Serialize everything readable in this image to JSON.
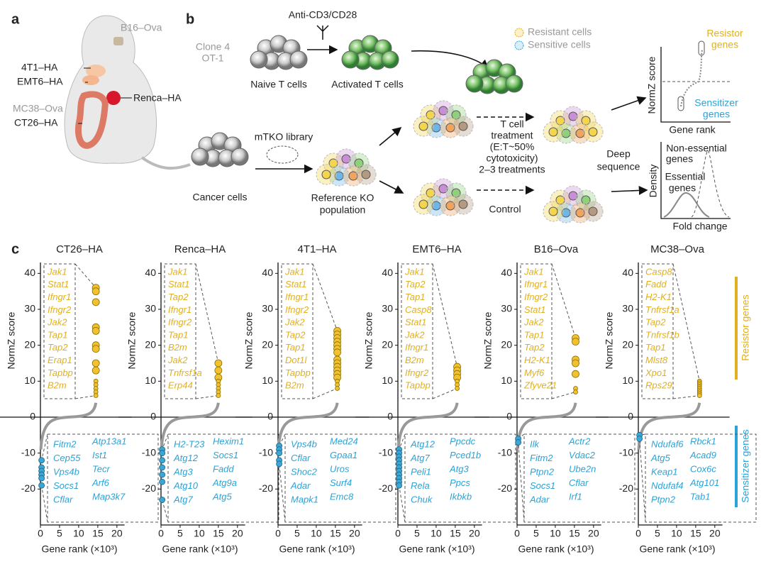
{
  "panel_a": {
    "label": "a",
    "tumors": [
      "B16–Ova",
      "4T1–HA",
      "EMT6–HA",
      "Renca–HA",
      "MC38–Ova",
      "CT26–HA"
    ]
  },
  "panel_b": {
    "label": "b",
    "antibody": "Anti-CD3/CD28",
    "clone": [
      "Clone 4",
      "OT-1"
    ],
    "naive": "Naive T cells",
    "activated": "Activated T cells",
    "resistant": "Resistant cells",
    "sensitive": "Sensitive cells",
    "cancer": "Cancer cells",
    "library": "mTKO library",
    "reference": [
      "Reference KO",
      "population"
    ],
    "treatment": [
      "T cell",
      "treatment",
      "(E:T~50%",
      "cytotoxicity)",
      "2–3 treatments"
    ],
    "control": "Control",
    "deep": [
      "Deep",
      "sequence"
    ],
    "resistor": [
      "Resistor",
      "genes"
    ],
    "sensitizer": [
      "Sensitizer",
      "genes"
    ],
    "normz": "NormZ score",
    "gene_rank": "Gene rank",
    "nonessential": [
      "Non-essential",
      "genes"
    ],
    "essential": [
      "Essential",
      "genes"
    ],
    "density": "Density",
    "fold_change": "Fold change"
  },
  "panel_c": {
    "label": "c",
    "y_label": "NormZ score",
    "x_label": "Gene rank (×10³)",
    "ylim": [
      -30,
      45
    ],
    "xlim": [
      -1,
      22
    ],
    "yticks": [
      40,
      30,
      20,
      10,
      0,
      -10,
      -20
    ],
    "xticks": [
      0,
      5,
      10,
      15,
      20
    ],
    "resistor_label": "Resistor genes",
    "sensitizer_label": "Sensitizer genes",
    "panels": [
      {
        "title": "CT26–HA",
        "resistor_rank": 14.5,
        "sensitizer_rank": 0.3,
        "resistor_genes": [
          "Jak1",
          "Stat1",
          "Ifngr1",
          "Ifngr2",
          "Jak2",
          "Tap1",
          "Tap2",
          "Erap1",
          "Tapbp",
          "B2m"
        ],
        "sensitizer_genes": [
          [
            "Fitm2",
            "Cep55",
            "Vps4b",
            "Socs1",
            "Cflar"
          ],
          [
            "Atp13a1",
            "Ist1",
            "Tecr",
            "Arf6",
            "Map3k7"
          ]
        ],
        "resistor_scores": [
          36,
          35,
          32,
          25,
          24,
          20,
          19,
          15,
          13,
          10,
          9,
          8,
          7,
          6
        ],
        "sensitizer_scores": [
          -12,
          -14,
          -15,
          -16,
          -17,
          -19
        ]
      },
      {
        "title": "Renca–HA",
        "resistor_rank": 15,
        "sensitizer_rank": 0.3,
        "resistor_genes": [
          "Jak1",
          "Stat1",
          "Tap2",
          "Ifngr1",
          "Ifngr2",
          "Tap1",
          "B2m",
          "Jak2",
          "Tnfrsf1a",
          "Erp44"
        ],
        "sensitizer_genes": [
          [
            "H2-T23",
            "Atg12",
            "Atg3",
            "Atg10",
            "Atg7"
          ],
          [
            "Hexim1",
            "Socs1",
            "Fadd",
            "Atg9a",
            "Atg5"
          ]
        ],
        "resistor_scores": [
          15,
          13,
          11,
          10,
          9,
          8,
          7,
          6
        ],
        "sensitizer_scores": [
          -9,
          -10,
          -12,
          -14,
          -16,
          -18,
          -23
        ]
      },
      {
        "title": "4T1–HA",
        "resistor_rank": 15.5,
        "sensitizer_rank": 0.3,
        "resistor_genes": [
          "Jak1",
          "Stat1",
          "Ifngr1",
          "Ifngr2",
          "Jak2",
          "Tap2",
          "Tap1",
          "Dot1l",
          "Tapbp",
          "B2m"
        ],
        "sensitizer_genes": [
          [
            "Vps4b",
            "Cflar",
            "Shoc2",
            "Adar",
            "Mapk1"
          ],
          [
            "Med24",
            "Gpaa1",
            "Uros",
            "Surf4",
            "Emc8"
          ]
        ],
        "resistor_scores": [
          24,
          23,
          22,
          21,
          20,
          19,
          18,
          16,
          15,
          14,
          13,
          12,
          11,
          10,
          9,
          8
        ],
        "sensitizer_scores": [
          -8,
          -9,
          -10,
          -12,
          -13
        ]
      },
      {
        "title": "EMT6–HA",
        "resistor_rank": 15.5,
        "sensitizer_rank": 0.3,
        "resistor_genes": [
          "Jak1",
          "Tap2",
          "Tap1",
          "Casp8",
          "Stat1",
          "Jak2",
          "Ifngr1",
          "B2m",
          "Ifngr2",
          "Tapbp"
        ],
        "sensitizer_genes": [
          [
            "Atg12",
            "Atg7",
            "Peli1",
            "Rela",
            "Chuk"
          ],
          [
            "Ppcdc",
            "Pced1b",
            "Atg3",
            "Ppcs",
            "Ikbkb"
          ]
        ],
        "resistor_scores": [
          14,
          13,
          12,
          11,
          10,
          9,
          8
        ],
        "sensitizer_scores": [
          -9,
          -10,
          -11,
          -12,
          -13,
          -14,
          -15,
          -16,
          -17,
          -18,
          -19
        ]
      },
      {
        "title": "B16–Ova",
        "resistor_rank": 15.3,
        "sensitizer_rank": 0.3,
        "resistor_genes": [
          "Jak1",
          "Ifngr1",
          "Ifngr2",
          "Stat1",
          "Jak2",
          "Tap1",
          "Tap2",
          "H2-K1",
          "Myf6",
          "Zfyve21"
        ],
        "sensitizer_genes": [
          [
            "Ilk",
            "Fitm2",
            "Ptpn2",
            "Socs1",
            "Adar"
          ],
          [
            "Actr2",
            "Vdac2",
            "Ube2n",
            "Cflar",
            "Irf1"
          ]
        ],
        "resistor_scores": [
          22,
          21,
          16,
          15,
          12,
          8,
          7
        ],
        "sensitizer_scores": [
          -6,
          -7
        ]
      },
      {
        "title": "MC38–Ova",
        "resistor_rank": 16,
        "sensitizer_rank": 0.3,
        "resistor_genes": [
          "Casp8",
          "Fadd",
          "H2-K1",
          "Tnfrsf1a",
          "Tap2",
          "Tnfrsf1b",
          "Tap1",
          "Mlst8",
          "Xpo1",
          "Rps29"
        ],
        "sensitizer_genes": [
          [
            "Ndufaf6",
            "Atg5",
            "Keap1",
            "Ndufaf4",
            "Ptpn2"
          ],
          [
            "Rbck1",
            "Acad9",
            "Cox6c",
            "Atg101",
            "Tab1"
          ]
        ],
        "resistor_scores": [
          10,
          9.5,
          9,
          8.5,
          8,
          7.5,
          7,
          6.5,
          6
        ],
        "sensitizer_scores": [
          -5,
          -6
        ]
      }
    ]
  }
}
